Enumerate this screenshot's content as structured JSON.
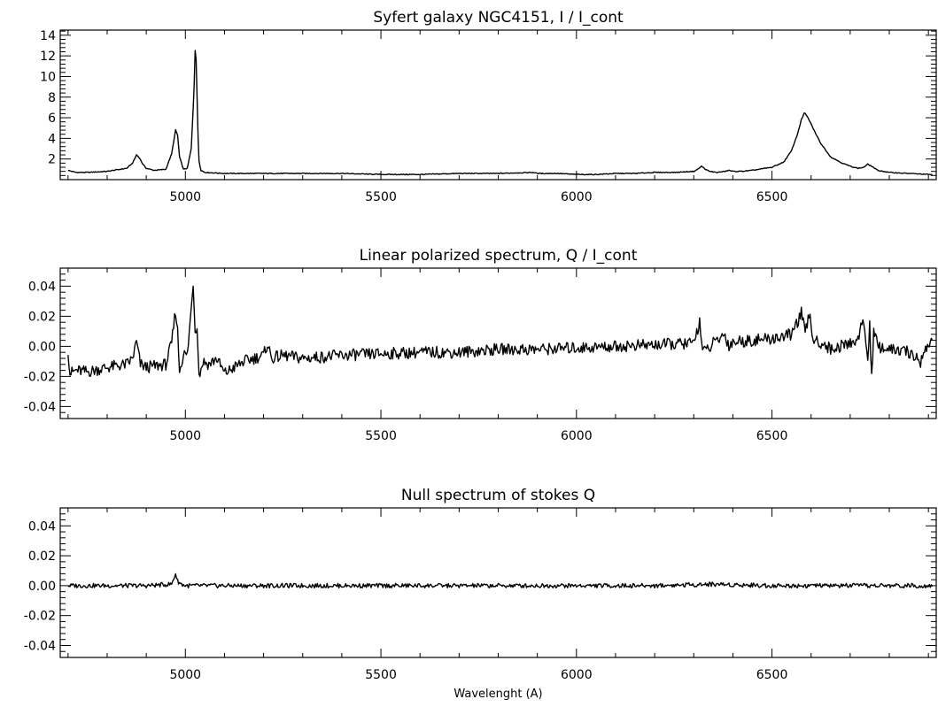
{
  "chart_data": [
    {
      "type": "line",
      "title": "Syfert galaxy NGC4151,  I / I_cont",
      "xlabel": "",
      "ylabel": "",
      "xlim": [
        4680,
        6920
      ],
      "ylim": [
        0,
        14.5
      ],
      "xticks": [
        5000,
        5500,
        6000,
        6500
      ],
      "yticks": [
        2,
        4,
        6,
        8,
        10,
        12,
        14
      ],
      "grid": false,
      "series": [
        {
          "x": [
            4700,
            4720,
            4750,
            4800,
            4850,
            4865,
            4875,
            4883,
            4891,
            4900,
            4920,
            4950,
            4965,
            4975,
            4980,
            4985,
            4995,
            5005,
            5015,
            5022,
            5026,
            5030,
            5034,
            5040,
            5050,
            5100,
            5200,
            5300,
            5400,
            5500,
            5600,
            5700,
            5800,
            5890,
            5900,
            5950,
            6000,
            6050,
            6100,
            6150,
            6200,
            6250,
            6300,
            6310,
            6320,
            6330,
            6340,
            6360,
            6380,
            6390,
            6400,
            6420,
            6450,
            6500,
            6530,
            6550,
            6565,
            6575,
            6583,
            6592,
            6600,
            6610,
            6625,
            6650,
            6680,
            6700,
            6720,
            6735,
            6745,
            6755,
            6770,
            6800,
            6850,
            6900,
            6910
          ],
          "y": [
            0.9,
            0.7,
            0.7,
            0.8,
            1.1,
            1.6,
            2.4,
            2.1,
            1.5,
            1.1,
            0.9,
            1.0,
            2.5,
            4.8,
            4.3,
            2.2,
            1.0,
            1.1,
            3.0,
            8.5,
            13.9,
            8.0,
            2.0,
            0.9,
            0.7,
            0.6,
            0.6,
            0.6,
            0.6,
            0.5,
            0.5,
            0.6,
            0.6,
            0.7,
            0.6,
            0.6,
            0.5,
            0.5,
            0.6,
            0.6,
            0.7,
            0.7,
            0.8,
            1.0,
            1.3,
            1.0,
            0.8,
            0.7,
            0.8,
            0.9,
            0.8,
            0.8,
            0.9,
            1.2,
            1.7,
            2.8,
            4.4,
            5.8,
            6.5,
            6.0,
            5.4,
            4.6,
            3.5,
            2.2,
            1.6,
            1.3,
            1.1,
            1.2,
            1.5,
            1.3,
            0.9,
            0.7,
            0.6,
            0.5,
            0.5
          ]
        }
      ]
    },
    {
      "type": "line",
      "title": "Linear polarized spectrum,  Q / I_cont",
      "xlabel": "",
      "ylabel": "",
      "xlim": [
        4680,
        6920
      ],
      "ylim": [
        -0.048,
        0.052
      ],
      "xticks": [
        5000,
        5500,
        6000,
        6500
      ],
      "yticks": [
        -0.04,
        -0.02,
        0.0,
        0.02,
        0.04
      ],
      "ytick_labels": [
        "-0.04",
        "-0.02",
        "0.00",
        "0.02",
        "0.04"
      ],
      "grid": false,
      "series": [
        {
          "x": [
            4700,
            4705,
            4720,
            4750,
            4800,
            4850,
            4865,
            4875,
            4885,
            4900,
            4950,
            4965,
            4975,
            4980,
            4985,
            4995,
            5005,
            5015,
            5020,
            5025,
            5030,
            5035,
            5045,
            5060,
            5080,
            5100,
            5150,
            5200,
            5210,
            5220,
            5250,
            5300,
            5400,
            5500,
            5600,
            5700,
            5800,
            5900,
            6000,
            6100,
            6200,
            6300,
            6315,
            6320,
            6330,
            6350,
            6380,
            6390,
            6400,
            6450,
            6500,
            6550,
            6575,
            6585,
            6595,
            6605,
            6615,
            6630,
            6650,
            6700,
            6720,
            6735,
            6745,
            6750,
            6755,
            6760,
            6770,
            6800,
            6850,
            6880,
            6900,
            6910
          ],
          "y": [
            -0.002,
            -0.018,
            -0.016,
            -0.017,
            -0.014,
            -0.012,
            -0.008,
            0.003,
            -0.012,
            -0.014,
            -0.012,
            0.002,
            0.024,
            0.01,
            -0.016,
            -0.005,
            -0.006,
            0.025,
            0.043,
            0.01,
            0.015,
            -0.02,
            -0.01,
            -0.012,
            -0.008,
            -0.018,
            -0.01,
            -0.006,
            0.002,
            -0.008,
            -0.006,
            -0.008,
            -0.006,
            -0.005,
            -0.004,
            -0.004,
            -0.002,
            -0.002,
            -0.001,
            0.0,
            0.001,
            0.002,
            0.017,
            0.002,
            -0.004,
            0.002,
            0.008,
            0.0,
            0.003,
            0.004,
            0.005,
            0.008,
            0.022,
            0.008,
            0.022,
            0.005,
            0.003,
            0.002,
            -0.002,
            0.002,
            0.005,
            0.018,
            -0.01,
            0.015,
            -0.02,
            0.01,
            0.0,
            -0.002,
            -0.004,
            -0.01,
            0.002,
            0.003
          ]
        }
      ]
    },
    {
      "type": "line",
      "title": "Null spectrum of stokes Q",
      "xlabel": "Wavelenght (A)",
      "ylabel": "",
      "xlim": [
        4680,
        6920
      ],
      "ylim": [
        -0.048,
        0.052
      ],
      "xticks": [
        5000,
        5500,
        6000,
        6500
      ],
      "yticks": [
        -0.04,
        -0.02,
        0.0,
        0.02,
        0.04
      ],
      "ytick_labels": [
        "-0.04",
        "-0.02",
        "0.00",
        "0.02",
        "0.04"
      ],
      "grid": false,
      "series": [
        {
          "x": [
            4700,
            4800,
            4900,
            4965,
            4975,
            4980,
            4990,
            5000,
            5100,
            5300,
            5600,
            5900,
            6200,
            6350,
            6500,
            6600,
            6750,
            6910
          ],
          "y": [
            0.0,
            0.0,
            0.0,
            0.001,
            0.008,
            0.003,
            0.001,
            0.0,
            0.0,
            0.0,
            0.0,
            0.0,
            0.0,
            0.001,
            0.0,
            0.0,
            0.0,
            0.0
          ]
        }
      ]
    }
  ]
}
